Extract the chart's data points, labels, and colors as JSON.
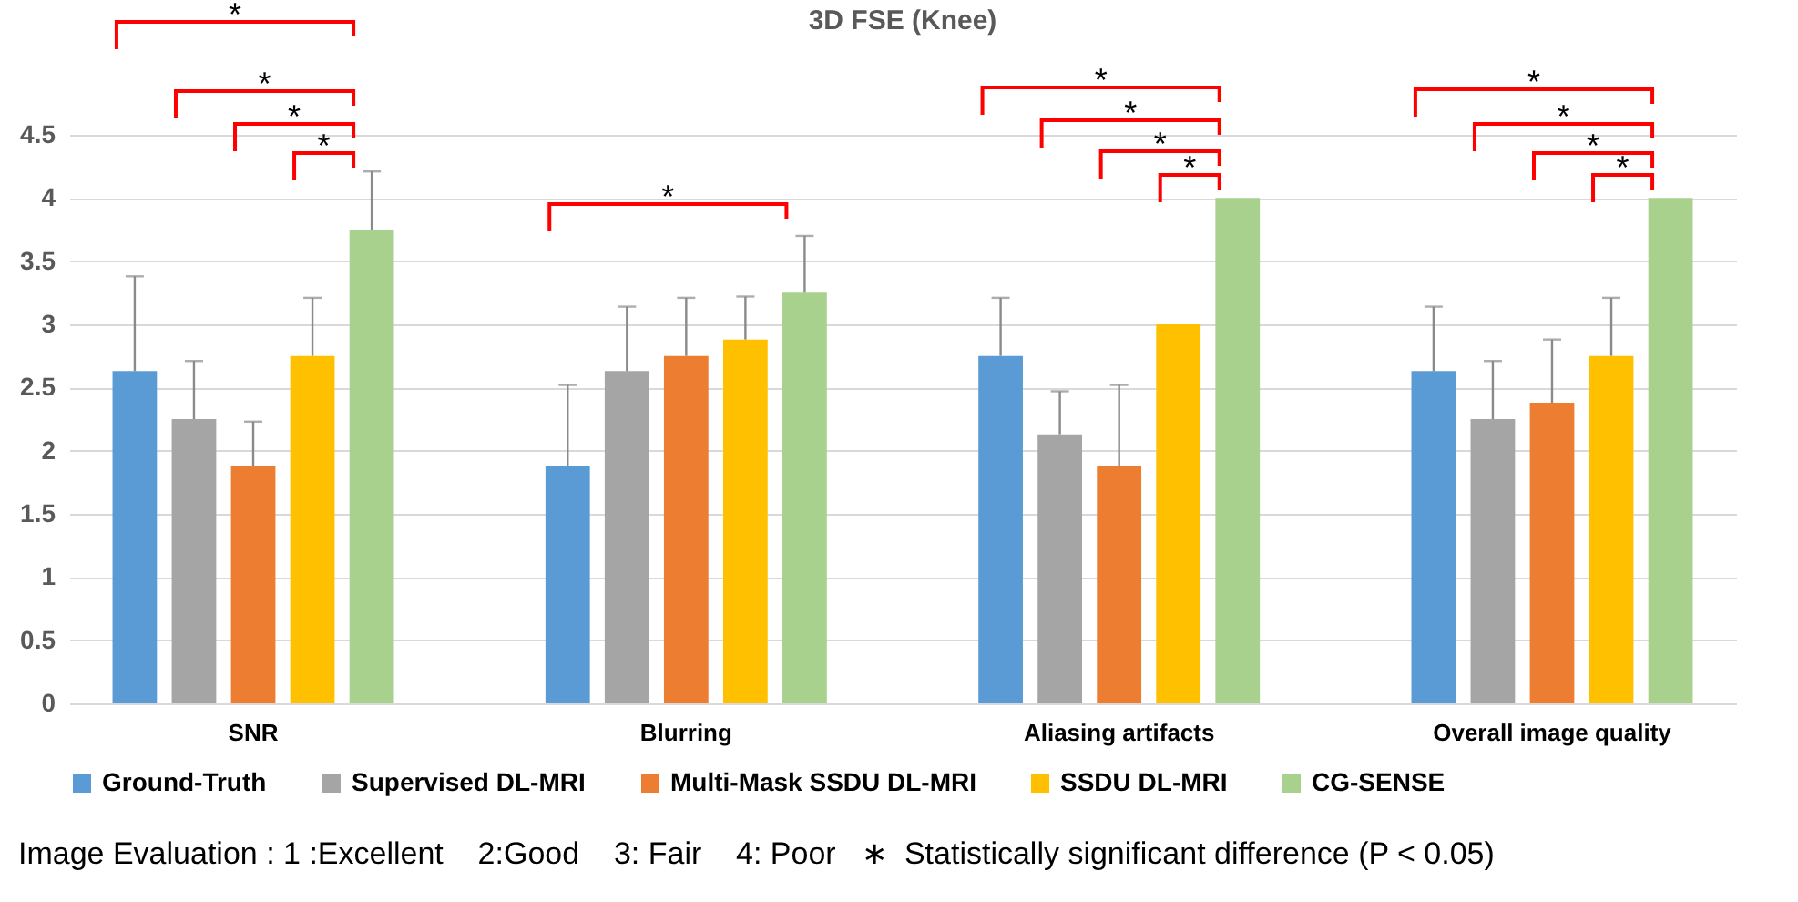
{
  "chart_data": {
    "type": "bar",
    "title": "3D FSE (Knee)",
    "categories": [
      "SNR",
      "Blurring",
      "Aliasing artifacts",
      "Overall image quality"
    ],
    "series": [
      {
        "name": "Ground-Truth",
        "color": "#5b9bd5",
        "values": [
          2.63,
          1.88,
          2.75,
          2.63
        ],
        "errors": [
          [
            2.63,
            3.38
          ],
          [
            1.88,
            2.52
          ],
          [
            2.75,
            3.21
          ],
          [
            2.63,
            3.14
          ]
        ]
      },
      {
        "name": "Supervised DL-MRI",
        "color": "#a5a5a5",
        "values": [
          2.25,
          2.63,
          2.13,
          2.25
        ],
        "errors": [
          [
            2.25,
            2.71
          ],
          [
            2.63,
            3.14
          ],
          [
            2.13,
            2.47
          ],
          [
            2.25,
            2.71
          ]
        ]
      },
      {
        "name": "Multi-Mask SSDU DL-MRI",
        "color": "#ed7d31",
        "values": [
          1.88,
          2.75,
          1.88,
          2.38
        ],
        "errors": [
          [
            1.88,
            2.23
          ],
          [
            2.75,
            3.21
          ],
          [
            1.88,
            2.52
          ],
          [
            2.38,
            2.88
          ]
        ]
      },
      {
        "name": "SSDU DL-MRI",
        "color": "#ffc000",
        "values": [
          2.75,
          2.88,
          3.0,
          2.75
        ],
        "errors": [
          [
            2.75,
            3.21
          ],
          [
            2.88,
            3.22
          ],
          [
            3.0,
            3.0
          ],
          [
            2.75,
            3.21
          ]
        ]
      },
      {
        "name": "CG-SENSE",
        "color": "#a9d18e",
        "values": [
          3.75,
          3.25,
          4.0,
          4.0
        ],
        "errors": [
          [
            3.75,
            4.21
          ],
          [
            3.25,
            3.7
          ],
          [
            4.0,
            4.0
          ],
          [
            4.0,
            4.0
          ]
        ]
      }
    ],
    "ylim": [
      0,
      4.5
    ],
    "yticks": [
      0,
      0.5,
      1,
      1.5,
      2,
      2.5,
      3,
      3.5,
      4,
      4.5
    ],
    "grid": "y",
    "legend": "bottom",
    "annotations": [
      "*",
      "*",
      "*",
      "*",
      "*",
      "*",
      "*",
      "*",
      "*",
      "*",
      "*",
      "*",
      "*",
      "Image Evaluation : 1 :Excellent    2:Good    3: Fair    4: Poor   ∗  Statistically significant difference (P < 0.05)"
    ]
  }
}
